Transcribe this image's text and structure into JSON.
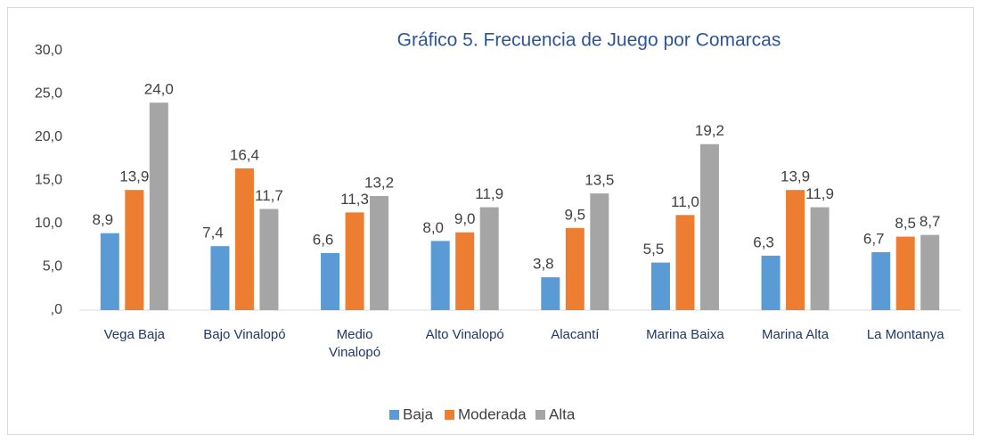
{
  "chart_data": {
    "type": "bar",
    "title": "Gráfico 5. Frecuencia de Juego por Comarcas",
    "categories": [
      "Vega Baja",
      "Bajo Vinalopó",
      "Medio Vinalopó",
      "Alto Vinalopó",
      "Alacantí",
      "Marina Baixa",
      "Marina Alta",
      "La Montanya"
    ],
    "series": [
      {
        "name": "Baja",
        "color": "#5b9bd5",
        "values": [
          8.9,
          7.4,
          6.6,
          8.0,
          3.8,
          5.5,
          6.3,
          6.7
        ],
        "value_labels": [
          "8,9",
          "7,4",
          "6,6",
          "8,0",
          "3,8",
          "5,5",
          "6,3",
          "6,7"
        ]
      },
      {
        "name": "Moderada",
        "color": "#ed7d31",
        "values": [
          13.9,
          16.4,
          11.3,
          9.0,
          9.5,
          11.0,
          13.9,
          8.5
        ],
        "value_labels": [
          "13,9",
          "16,4",
          "11,3",
          "9,0",
          "9,5",
          "11,0",
          "13,9",
          "8,5"
        ]
      },
      {
        "name": "Alta",
        "color": "#a5a5a5",
        "values": [
          24.0,
          11.7,
          13.2,
          11.9,
          13.5,
          19.2,
          11.9,
          8.7
        ],
        "value_labels": [
          "24,0",
          "11,7",
          "13,2",
          "11,9",
          "13,5",
          "19,2",
          "11,9",
          "8,7"
        ]
      }
    ],
    "ylim": [
      0,
      30
    ],
    "yticks": [
      {
        "value": 0,
        "label": ",0"
      },
      {
        "value": 5,
        "label": "5,0"
      },
      {
        "value": 10,
        "label": "10,0"
      },
      {
        "value": 15,
        "label": "15,0"
      },
      {
        "value": 20,
        "label": "20,0"
      },
      {
        "value": 25,
        "label": "25,0"
      },
      {
        "value": 30,
        "label": "30,0"
      }
    ],
    "grid": false,
    "legend": "bottom"
  }
}
